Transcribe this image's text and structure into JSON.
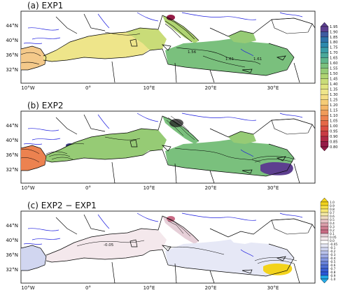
{
  "panels": [
    {
      "title": "(a) EXP1",
      "contour_labels": [
        "1.56",
        "1.61",
        "1.61"
      ]
    },
    {
      "title": "(b) EXP2",
      "contour_labels": []
    },
    {
      "title": "(c) EXP2 − EXP1",
      "contour_labels": [
        "-0.05"
      ]
    }
  ],
  "x_ticks": [
    "10°W",
    "0°",
    "10°E",
    "20°E",
    "30°E"
  ],
  "y_ticks": [
    "44°N",
    "40°N",
    "36°N",
    "32°N"
  ],
  "colorbar_top": {
    "labels": [
      "1.95",
      "1.90",
      "1.85",
      "1.80",
      "1.75",
      "1.70",
      "1.65",
      "1.60",
      "1.55",
      "1.50",
      "1.45",
      "1.40",
      "1.35",
      "1.30",
      "1.25",
      "1.20",
      "1.15",
      "1.10",
      "1.05",
      "1.00",
      "0.95",
      "0.90",
      "0.85",
      "0.80"
    ],
    "colors": [
      "#5d3f8f",
      "#3f5aa0",
      "#2f72a8",
      "#2d89ad",
      "#3a9ca6",
      "#4aa99a",
      "#5fb58b",
      "#7ac07d",
      "#96cb75",
      "#afd471",
      "#c9dc78",
      "#dfe37f",
      "#eee58a",
      "#f4dd84",
      "#f5cc76",
      "#f3b667",
      "#f09c5a",
      "#ec8250",
      "#e56848",
      "#db4f44",
      "#c83a44",
      "#b02945",
      "#951c47"
    ]
  },
  "colorbar_bottom": {
    "labels": [
      "1.0",
      "0.9",
      "0.8",
      "0.7",
      "0.6",
      "0.5",
      "0.4",
      "0.3",
      "0.2",
      "0.1",
      "0.05",
      "0.0",
      "-0.05",
      "-0.1",
      "-0.2",
      "-0.3",
      "-0.4",
      "-0.5",
      "-0.6",
      "-0.7",
      "-0.8",
      "-0.9",
      "-1.0"
    ],
    "colors": [
      "#f3d31c",
      "#f6e04a",
      "#f8e977",
      "#f3e8a4",
      "#efdcc2",
      "#e8c4c8",
      "#dca0ac",
      "#d07f92",
      "#c86a84",
      "#e6cfd8",
      "#f4e8ec",
      "#ffffff",
      "#e6e8f6",
      "#d1d6f0",
      "#b9c2ec",
      "#a0ade6",
      "#8598e0",
      "#6a83db",
      "#4f6fd5",
      "#3a5fd3",
      "#2b58d8",
      "#25a9e6"
    ]
  },
  "colors": {
    "panel_a_land": "#ffffff",
    "coast": "#000000",
    "rivers": "#1f1fdf"
  }
}
